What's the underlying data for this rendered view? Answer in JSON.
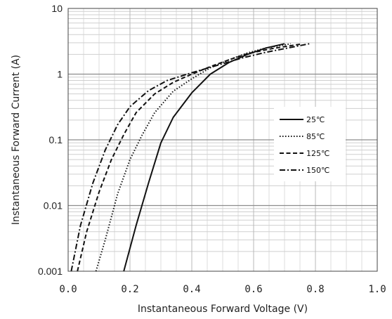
{
  "chart_data": {
    "type": "line",
    "title": "",
    "xlabel": "Instantaneous Forward Voltage (V)",
    "ylabel": "Instantaneous Forward Current (A)",
    "x_scale": "linear",
    "y_scale": "log",
    "xlim": [
      0,
      1.0
    ],
    "ylim": [
      0.001,
      10
    ],
    "x_ticks": [
      "0.0",
      "0.2",
      "0.4",
      "0.6",
      "0.8",
      "1.0"
    ],
    "y_ticks": [
      "0.001",
      "0.01",
      "0.1",
      "1",
      "10"
    ],
    "grid": true,
    "legend_position": "right-middle",
    "series": [
      {
        "name": "25℃",
        "dash": "solid",
        "x": [
          0.18,
          0.22,
          0.26,
          0.3,
          0.34,
          0.4,
          0.46,
          0.52,
          0.58,
          0.64,
          0.7
        ],
        "y": [
          0.001,
          0.005,
          0.022,
          0.09,
          0.22,
          0.52,
          1.0,
          1.5,
          2.0,
          2.5,
          2.9
        ]
      },
      {
        "name": "85℃",
        "dash": "dot",
        "x": [
          0.09,
          0.12,
          0.16,
          0.2,
          0.24,
          0.28,
          0.34,
          0.4,
          0.46,
          0.52,
          0.58,
          0.64,
          0.72
        ],
        "y": [
          0.001,
          0.003,
          0.015,
          0.05,
          0.12,
          0.26,
          0.55,
          0.85,
          1.25,
          1.65,
          2.1,
          2.5,
          2.9
        ]
      },
      {
        "name": "125℃",
        "dash": "dash",
        "x": [
          0.03,
          0.06,
          0.1,
          0.14,
          0.18,
          0.22,
          0.28,
          0.34,
          0.4,
          0.46,
          0.52,
          0.58,
          0.66,
          0.75
        ],
        "y": [
          0.001,
          0.004,
          0.016,
          0.05,
          0.12,
          0.26,
          0.5,
          0.75,
          1.0,
          1.3,
          1.65,
          2.05,
          2.45,
          2.85
        ]
      },
      {
        "name": "150℃",
        "dash": "dashdot",
        "x": [
          0.01,
          0.04,
          0.08,
          0.12,
          0.16,
          0.2,
          0.26,
          0.32,
          0.4,
          0.48,
          0.56,
          0.64,
          0.72,
          0.78
        ],
        "y": [
          0.001,
          0.005,
          0.022,
          0.07,
          0.17,
          0.32,
          0.56,
          0.8,
          1.05,
          1.35,
          1.75,
          2.15,
          2.55,
          2.9
        ]
      }
    ]
  }
}
